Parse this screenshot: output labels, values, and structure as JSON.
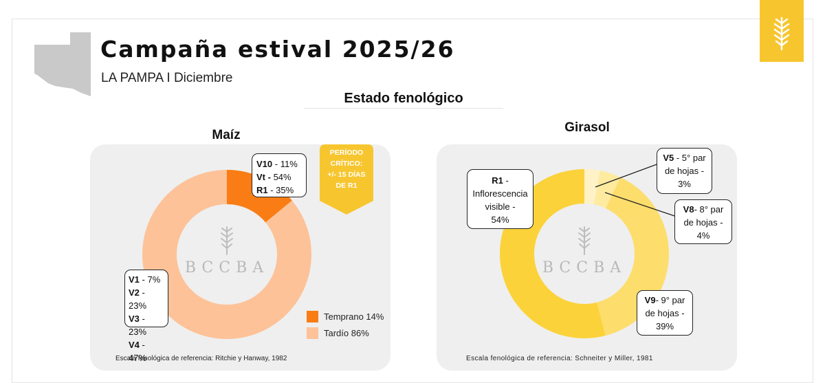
{
  "header": {
    "title": "Campaña estival 2025/26",
    "subtitle": "LA PAMPA I Diciembre",
    "section_title": "Estado fenológico",
    "brand_color": "#f7c62f",
    "logo_icon": "wheat-icon",
    "map_icon": "la-pampa-map-icon"
  },
  "watermark": {
    "text": "BCCBA",
    "icon": "wheat-icon"
  },
  "chart_data": [
    {
      "type": "pie",
      "title": "Maíz",
      "series": [
        {
          "name": "Temprano",
          "value": 14,
          "color": "#f97d14"
        },
        {
          "name": "Tardío",
          "value": 86,
          "color": "#fdc298"
        }
      ],
      "legend": {
        "placement": "bottom-right",
        "entries": [
          "Temprano 14%",
          "Tardío 86%"
        ]
      },
      "callouts": {
        "temprano": [
          {
            "stage": "V10",
            "value": " - 11%"
          },
          {
            "stage": "Vt -",
            "value": " 54%"
          },
          {
            "stage": "R1",
            "value": " - 35%"
          }
        ],
        "tardio": [
          {
            "stage": "V1",
            "value": " - 7%"
          },
          {
            "stage": "V2",
            "value": " - 23%"
          },
          {
            "stage": "V3",
            "value": " - 23%"
          },
          {
            "stage": "V4",
            "value": " - 47%"
          }
        ]
      },
      "critical_badge": [
        "PERÍODO",
        "CRÍTICO:",
        "+/- 15 DÍAS",
        "DE R1"
      ],
      "reference": "Escala fenológica de referencia: Ritchie y Hanway, 1982"
    },
    {
      "type": "pie",
      "title": "Girasol",
      "series": [
        {
          "name": "V5 - 5° par de hojas",
          "value": 3,
          "color": "#fff2c7"
        },
        {
          "name": "V8 - 8° par de hojas",
          "value": 4,
          "color": "#feeba0"
        },
        {
          "name": "V9 - 9° par de hojas",
          "value": 39,
          "color": "#fddd6c"
        },
        {
          "name": "R1 - Inflorescencia visible",
          "value": 54,
          "color": "#fcd23a"
        }
      ],
      "callouts": {
        "v5": {
          "stage": "V5",
          "lines": [
            " -  5° par",
            "de hojas -",
            "3%"
          ]
        },
        "v8": {
          "stage": "V8",
          "lines": [
            "-  8° par",
            "de hojas -",
            "4%"
          ]
        },
        "v9": {
          "stage": "V9",
          "lines": [
            "-  9° par",
            "de hojas -",
            "39%"
          ]
        },
        "r1": {
          "stage": "R1",
          "lines": [
            " -",
            "Inflorescencia",
            "visible -",
            "54%"
          ]
        }
      },
      "reference": "Escala fenológica de referencia: Schneiter y Miller, 1981"
    }
  ]
}
